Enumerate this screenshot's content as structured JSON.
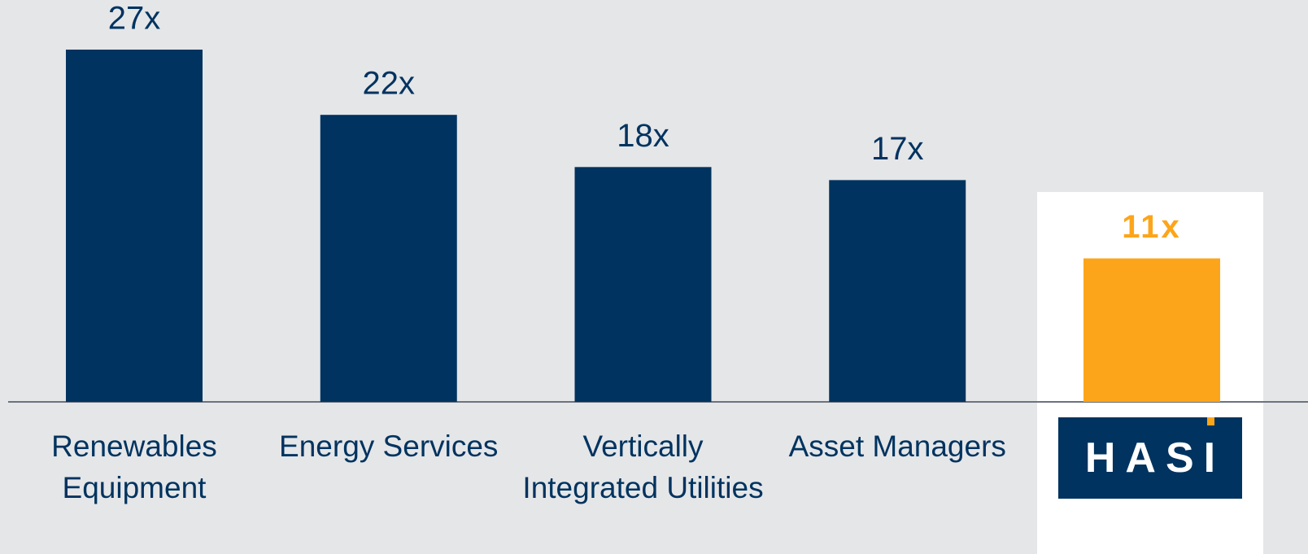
{
  "chart_data": {
    "type": "bar",
    "categories": [
      "Renewables Equipment",
      "Energy Services",
      "Vertically Integrated Utilities",
      "Asset Managers",
      "HASI"
    ],
    "values": [
      27,
      22,
      18,
      17,
      11
    ],
    "value_labels": [
      "27x",
      "22x",
      "18x",
      "17x",
      "11x"
    ],
    "colors": [
      "#00335f",
      "#00335f",
      "#00335f",
      "#00335f",
      "#fda51a"
    ]
  }
}
